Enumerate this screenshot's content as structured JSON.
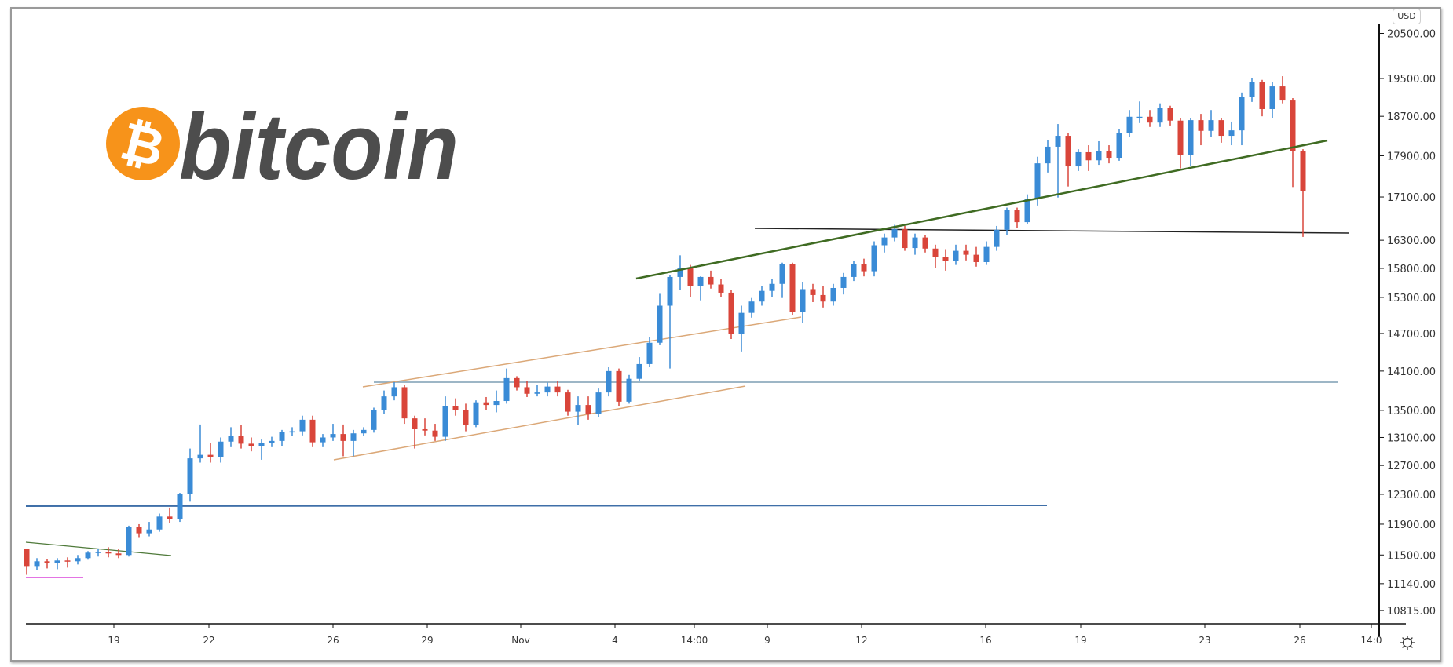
{
  "logo": {
    "text": "bitcoin",
    "symbol": "₿",
    "coin_color": "#f7931a",
    "text_color": "#4d4d4d"
  },
  "price_axis": {
    "currency_label": "USD"
  },
  "colors": {
    "up": "#3a8bd6",
    "down": "#d9453a",
    "trend_green": "#3f6b22",
    "channel_tan": "#dba878",
    "level_blue": "#3f6fa8",
    "level_steel": "#7d9db3",
    "level_black": "#222222",
    "level_pink": "#e374e3"
  },
  "chart_data": {
    "type": "candlestick",
    "title": "",
    "xlabel": "",
    "ylabel": "USD",
    "y_scale": "log",
    "ylim": [
      10600,
      21000
    ],
    "grid": false,
    "price_ticks": [
      "20500.00",
      "19500.00",
      "18700.00",
      "17900.00",
      "17100.00",
      "16300.00",
      "15800.00",
      "15300.00",
      "14700.00",
      "14100.00",
      "13500.00",
      "13100.00",
      "12700.00",
      "12300.00",
      "11900.00",
      "11500.00",
      "11140.00",
      "10815.00"
    ],
    "time_ticks": [
      "19",
      "22",
      "26",
      "29",
      "Nov",
      "4",
      "14:00",
      "9",
      "12",
      "16",
      "19",
      "23",
      "26",
      "14:0"
    ],
    "candle_fields": [
      "open",
      "high",
      "low",
      "close"
    ],
    "candles": [
      [
        11580,
        11580,
        11250,
        11360
      ],
      [
        11360,
        11460,
        11310,
        11420
      ],
      [
        11420,
        11450,
        11330,
        11400
      ],
      [
        11400,
        11460,
        11320,
        11430
      ],
      [
        11430,
        11470,
        11340,
        11420
      ],
      [
        11420,
        11500,
        11380,
        11460
      ],
      [
        11460,
        11550,
        11440,
        11530
      ],
      [
        11530,
        11580,
        11480,
        11540
      ],
      [
        11540,
        11600,
        11470,
        11520
      ],
      [
        11520,
        11580,
        11460,
        11500
      ],
      [
        11500,
        11880,
        11480,
        11860
      ],
      [
        11860,
        11900,
        11730,
        11780
      ],
      [
        11780,
        11930,
        11740,
        11830
      ],
      [
        11830,
        12040,
        11800,
        12000
      ],
      [
        12000,
        12120,
        11920,
        11970
      ],
      [
        11970,
        12320,
        11930,
        12300
      ],
      [
        12300,
        12940,
        12200,
        12800
      ],
      [
        12800,
        13290,
        12740,
        12850
      ],
      [
        12850,
        13020,
        12740,
        12820
      ],
      [
        12820,
        13100,
        12740,
        13040
      ],
      [
        13040,
        13250,
        12960,
        13120
      ],
      [
        13120,
        13280,
        12940,
        13010
      ],
      [
        13010,
        13100,
        12900,
        12980
      ],
      [
        12980,
        13070,
        12780,
        13020
      ],
      [
        13020,
        13110,
        12960,
        13050
      ],
      [
        13050,
        13210,
        12980,
        13180
      ],
      [
        13180,
        13250,
        13120,
        13190
      ],
      [
        13190,
        13420,
        13130,
        13360
      ],
      [
        13360,
        13420,
        12960,
        13030
      ],
      [
        13030,
        13150,
        12960,
        13100
      ],
      [
        13100,
        13300,
        13050,
        13150
      ],
      [
        13150,
        13290,
        12830,
        13050
      ],
      [
        13050,
        13210,
        12830,
        13160
      ],
      [
        13160,
        13250,
        13120,
        13210
      ],
      [
        13210,
        13540,
        13170,
        13500
      ],
      [
        13500,
        13800,
        13440,
        13710
      ],
      [
        13710,
        13930,
        13650,
        13850
      ],
      [
        13850,
        13890,
        13300,
        13380
      ],
      [
        13380,
        13420,
        12940,
        13220
      ],
      [
        13220,
        13380,
        13130,
        13200
      ],
      [
        13200,
        13300,
        13050,
        13110
      ],
      [
        13110,
        13710,
        13050,
        13560
      ],
      [
        13560,
        13680,
        13420,
        13500
      ],
      [
        13500,
        13600,
        13190,
        13280
      ],
      [
        13280,
        13650,
        13250,
        13620
      ],
      [
        13620,
        13700,
        13500,
        13580
      ],
      [
        13580,
        13800,
        13470,
        13640
      ],
      [
        13640,
        14140,
        13600,
        13990
      ],
      [
        13990,
        14020,
        13800,
        13850
      ],
      [
        13850,
        13950,
        13700,
        13750
      ],
      [
        13750,
        13890,
        13710,
        13770
      ],
      [
        13770,
        13920,
        13710,
        13860
      ],
      [
        13860,
        13950,
        13710,
        13770
      ],
      [
        13770,
        13810,
        13420,
        13480
      ],
      [
        13480,
        13710,
        13280,
        13580
      ],
      [
        13580,
        13710,
        13360,
        13450
      ],
      [
        13450,
        13830,
        13400,
        13770
      ],
      [
        13770,
        14160,
        13710,
        14100
      ],
      [
        14100,
        14140,
        13560,
        13630
      ],
      [
        13630,
        14040,
        13600,
        13980
      ],
      [
        13980,
        14320,
        13950,
        14210
      ],
      [
        14210,
        14640,
        14160,
        14550
      ],
      [
        14550,
        15360,
        14510,
        15160
      ],
      [
        15160,
        15690,
        14140,
        15650
      ],
      [
        15650,
        16030,
        15420,
        15800
      ],
      [
        15800,
        15860,
        15310,
        15490
      ],
      [
        15490,
        15660,
        15250,
        15650
      ],
      [
        15650,
        15760,
        15450,
        15520
      ],
      [
        15520,
        15620,
        15310,
        15380
      ],
      [
        15380,
        15420,
        14610,
        14690
      ],
      [
        14690,
        15160,
        14410,
        15040
      ],
      [
        15040,
        15290,
        14960,
        15230
      ],
      [
        15230,
        15490,
        15160,
        15410
      ],
      [
        15410,
        15620,
        15310,
        15530
      ],
      [
        15530,
        15900,
        15290,
        15870
      ],
      [
        15870,
        15900,
        15000,
        15060
      ],
      [
        15060,
        15560,
        14870,
        15440
      ],
      [
        15440,
        15530,
        15220,
        15340
      ],
      [
        15340,
        15490,
        15130,
        15230
      ],
      [
        15230,
        15530,
        15160,
        15460
      ],
      [
        15460,
        15720,
        15350,
        15650
      ],
      [
        15650,
        15930,
        15580,
        15870
      ],
      [
        15870,
        15970,
        15660,
        15750
      ],
      [
        15750,
        16280,
        15660,
        16210
      ],
      [
        16210,
        16420,
        16080,
        16350
      ],
      [
        16350,
        16580,
        16280,
        16500
      ],
      [
        16500,
        16560,
        16110,
        16160
      ],
      [
        16160,
        16420,
        16040,
        16350
      ],
      [
        16350,
        16390,
        16080,
        16150
      ],
      [
        16150,
        16220,
        15800,
        16000
      ],
      [
        16000,
        16140,
        15760,
        15930
      ],
      [
        15930,
        16220,
        15860,
        16110
      ],
      [
        16110,
        16220,
        15940,
        16040
      ],
      [
        16040,
        16180,
        15830,
        15910
      ],
      [
        15910,
        16280,
        15860,
        16180
      ],
      [
        16180,
        16560,
        16110,
        16490
      ],
      [
        16490,
        16900,
        16390,
        16850
      ],
      [
        16850,
        16900,
        16530,
        16630
      ],
      [
        16630,
        17150,
        16590,
        17070
      ],
      [
        17070,
        17880,
        16940,
        17750
      ],
      [
        17750,
        18220,
        17570,
        18080
      ],
      [
        18080,
        18540,
        17090,
        18300
      ],
      [
        18300,
        18350,
        17300,
        17690
      ],
      [
        17690,
        18030,
        17600,
        17970
      ],
      [
        17970,
        18110,
        17600,
        17810
      ],
      [
        17810,
        18190,
        17720,
        18000
      ],
      [
        18000,
        18110,
        17750,
        17860
      ],
      [
        17860,
        18430,
        17800,
        18350
      ],
      [
        18350,
        18830,
        18270,
        18690
      ],
      [
        18690,
        19010,
        18560,
        18690
      ],
      [
        18690,
        18830,
        18480,
        18570
      ],
      [
        18570,
        18970,
        18480,
        18870
      ],
      [
        18870,
        18920,
        18510,
        18610
      ],
      [
        18610,
        18670,
        17650,
        17920
      ],
      [
        17920,
        18670,
        17690,
        18620
      ],
      [
        18620,
        18750,
        18110,
        18400
      ],
      [
        18400,
        18830,
        18270,
        18620
      ],
      [
        18620,
        18670,
        18160,
        18300
      ],
      [
        18300,
        18590,
        18110,
        18410
      ],
      [
        18410,
        19200,
        18110,
        19100
      ],
      [
        19100,
        19500,
        19000,
        19420
      ],
      [
        19420,
        19470,
        18700,
        18850
      ],
      [
        18850,
        19420,
        18670,
        19330
      ],
      [
        19330,
        19550,
        18970,
        19030
      ],
      [
        19030,
        19080,
        17290,
        17990
      ],
      [
        17990,
        18030,
        16360,
        17220
      ]
    ]
  }
}
